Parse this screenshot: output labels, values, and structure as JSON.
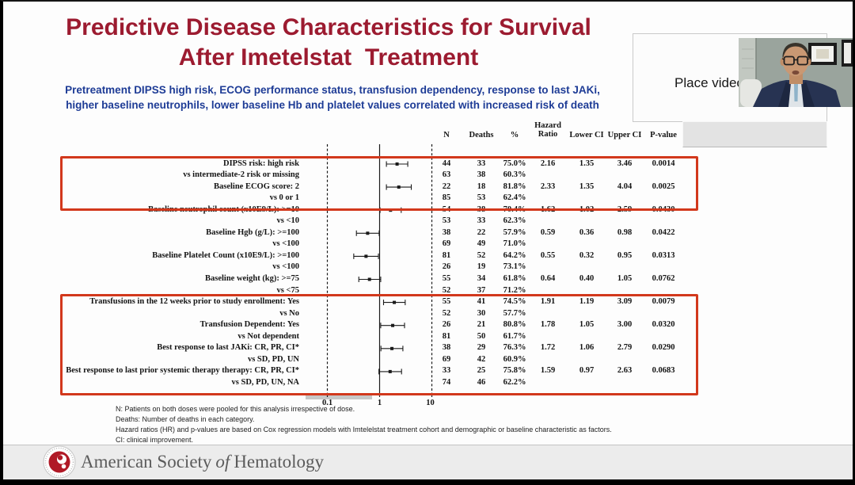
{
  "slide": {
    "title_line1": "Predictive Disease Characteristics for Survival",
    "title_line2": "After Imetelstat  Treatment",
    "subtitle_line1": "Pretreatment DIPSS high risk, ECOG performance status, transfusion dependency, response to last JAKi,",
    "subtitle_line2": "higher baseline neutrophils, lower baseline Hb and platelet values correlated with increased risk of death"
  },
  "colors": {
    "title_red": "#9c1b30",
    "subtitle_blue": "#1e3c96",
    "box_red": "#d2381c",
    "ash_red": "#b01926",
    "footer_text": "#5b5b5b"
  },
  "video_overlay": {
    "placeholder_label": "Place video"
  },
  "footnotes": [
    "N: Patients on both doses were pooled for this analysis irrespective of dose.",
    "Deaths: Number of deaths in each category.",
    "Hazard ratios (HR) and p-values are based on Cox regression models with Imtelelstat treatment cohort and demographic or baseline characteristic as factors.",
    "CI: clinical improvement."
  ],
  "footer": {
    "org_pre": "American Society",
    "org_italic": "of",
    "org_post": "Hematology"
  },
  "chart_data": {
    "type": "forest",
    "x_scale": "log",
    "x_range": [
      0.1,
      10
    ],
    "x_ticks": [
      0.1,
      1,
      10
    ],
    "x_tick_labels": [
      "0.1",
      "1",
      "10"
    ],
    "reference_line": 1,
    "dashed_lines": [
      0.1,
      10
    ],
    "columns": [
      "N",
      "Deaths",
      "%",
      "Hazard Ratio",
      "Lower CI",
      "Upper CI",
      "P-value"
    ],
    "rows": [
      {
        "label": "DIPSS risk: high risk",
        "n": 44,
        "deaths": 33,
        "pct": "75.0%",
        "hr": 2.16,
        "lower_ci": 1.35,
        "upper_ci": 3.46,
        "p": "0.0014"
      },
      {
        "label": "vs intermediate-2 risk or missing",
        "n": 63,
        "deaths": 38,
        "pct": "60.3%"
      },
      {
        "label": "Baseline ECOG score: 2",
        "n": 22,
        "deaths": 18,
        "pct": "81.8%",
        "hr": 2.33,
        "lower_ci": 1.35,
        "upper_ci": 4.04,
        "p": "0.0025"
      },
      {
        "label": "vs 0 or 1",
        "n": 85,
        "deaths": 53,
        "pct": "62.4%"
      },
      {
        "label": "Baseline neutrophil count (x10E9/L): >=10",
        "n": 54,
        "deaths": 38,
        "pct": "70.4%",
        "hr": 1.62,
        "lower_ci": 1.02,
        "upper_ci": 2.59,
        "p": "0.0430"
      },
      {
        "label": "vs <10",
        "n": 53,
        "deaths": 33,
        "pct": "62.3%"
      },
      {
        "label": "Baseline Hgb (g/L): >=100",
        "n": 38,
        "deaths": 22,
        "pct": "57.9%",
        "hr": 0.59,
        "lower_ci": 0.36,
        "upper_ci": 0.98,
        "p": "0.0422"
      },
      {
        "label": "vs <100",
        "n": 69,
        "deaths": 49,
        "pct": "71.0%"
      },
      {
        "label": "Baseline Platelet Count (x10E9/L): >=100",
        "n": 81,
        "deaths": 52,
        "pct": "64.2%",
        "hr": 0.55,
        "lower_ci": 0.32,
        "upper_ci": 0.95,
        "p": "0.0313"
      },
      {
        "label": "vs <100",
        "n": 26,
        "deaths": 19,
        "pct": "73.1%"
      },
      {
        "label": "Baseline weight (kg): >=75",
        "n": 55,
        "deaths": 34,
        "pct": "61.8%",
        "hr": 0.64,
        "lower_ci": 0.4,
        "upper_ci": 1.05,
        "p": "0.0762"
      },
      {
        "label": "vs <75",
        "n": 52,
        "deaths": 37,
        "pct": "71.2%"
      },
      {
        "label": "Transfusions in the 12 weeks prior to study enrollment: Yes",
        "n": 55,
        "deaths": 41,
        "pct": "74.5%",
        "hr": 1.91,
        "lower_ci": 1.19,
        "upper_ci": 3.09,
        "p": "0.0079"
      },
      {
        "label": "vs No",
        "n": 52,
        "deaths": 30,
        "pct": "57.7%"
      },
      {
        "label": "Transfusion Dependent: Yes",
        "n": 26,
        "deaths": 21,
        "pct": "80.8%",
        "hr": 1.78,
        "lower_ci": 1.05,
        "upper_ci": 3.0,
        "p": "0.0320"
      },
      {
        "label": "vs Not dependent",
        "n": 81,
        "deaths": 50,
        "pct": "61.7%"
      },
      {
        "label": "Best response to last JAKi: CR, PR, CI*",
        "n": 38,
        "deaths": 29,
        "pct": "76.3%",
        "hr": 1.72,
        "lower_ci": 1.06,
        "upper_ci": 2.79,
        "p": "0.0290"
      },
      {
        "label": "vs SD, PD, UN",
        "n": 69,
        "deaths": 42,
        "pct": "60.9%"
      },
      {
        "label": "Best response to last prior systemic therapy therapy: CR, PR, CI*",
        "n": 33,
        "deaths": 25,
        "pct": "75.8%",
        "hr": 1.59,
        "lower_ci": 0.97,
        "upper_ci": 2.63,
        "p": "0.0683"
      },
      {
        "label": "vs SD, PD, UN, NA",
        "n": 74,
        "deaths": 46,
        "pct": "62.2%"
      }
    ],
    "highlight_boxes": [
      {
        "from_row": 0,
        "to_row": 3
      },
      {
        "from_row": 12,
        "to_row": 19
      }
    ]
  }
}
